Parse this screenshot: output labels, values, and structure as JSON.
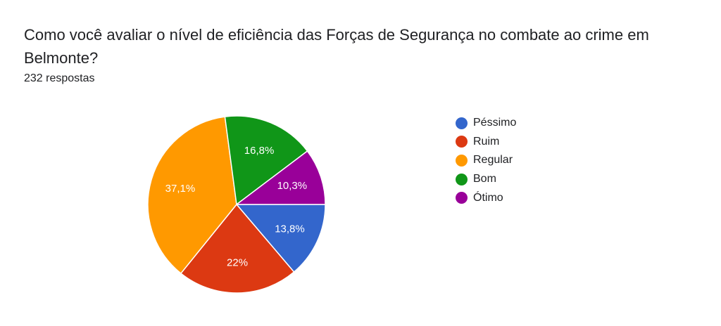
{
  "form": {
    "question": "Como você avaliar o nível de eficiência das Forças de Segurança no combate ao crime em Belmonte?",
    "responses": "232 respostas"
  },
  "chart_data": {
    "type": "pie",
    "title": "Como você avaliar o nível de eficiência das Forças de Segurança no combate ao crime em Belmonte?",
    "categories": [
      "Péssimo",
      "Ruim",
      "Regular",
      "Bom",
      "Ótimo"
    ],
    "values": [
      13.8,
      22.0,
      37.1,
      16.8,
      10.3
    ],
    "labels": [
      "13,8%",
      "22%",
      "37,1%",
      "16,8%",
      "10,3%"
    ],
    "colors": [
      "#3366cc",
      "#dc3912",
      "#ff9900",
      "#109618",
      "#990099"
    ],
    "legend": "right",
    "start": "3 o'clock, clockwise"
  }
}
